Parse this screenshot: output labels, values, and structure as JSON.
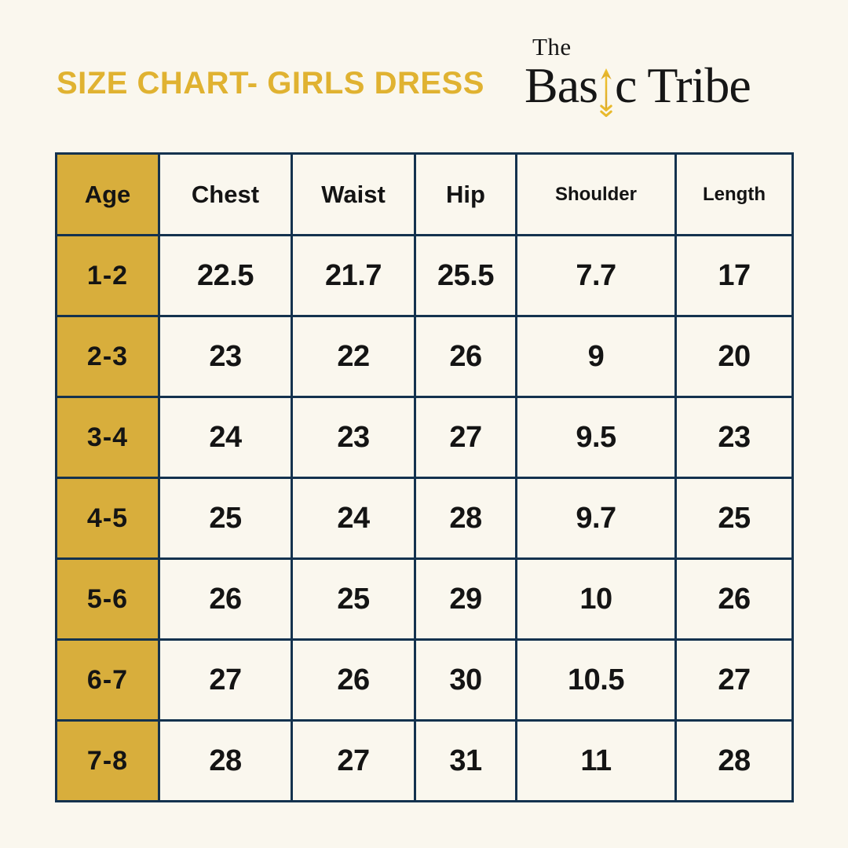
{
  "title": {
    "text": "SIZE CHART- GIRLS DRESS"
  },
  "logo": {
    "line1": "The",
    "basic_prefix": "Bas",
    "basic_suffix": "c",
    "word2": "Tribe"
  },
  "colors": {
    "background": "#FAF7EE",
    "title_gold": "#E0B231",
    "accent_gold": "#D8AE3C",
    "arrow_gold_light": "#F2C52D",
    "arrow_gold_dark": "#D9A62B",
    "table_border_navy": "#14324E",
    "text_black": "#141414"
  },
  "table": {
    "columns": [
      "Age",
      "Chest",
      "Waist",
      "Hip",
      "Shoulder",
      "Length"
    ],
    "rows": [
      [
        "1-2",
        "22.5",
        "21.7",
        "25.5",
        "7.7",
        "17"
      ],
      [
        "2-3",
        "23",
        "22",
        "26",
        "9",
        "20"
      ],
      [
        "3-4",
        "24",
        "23",
        "27",
        "9.5",
        "23"
      ],
      [
        "4-5",
        "25",
        "24",
        "28",
        "9.7",
        "25"
      ],
      [
        "5-6",
        "26",
        "25",
        "29",
        "10",
        "26"
      ],
      [
        "6-7",
        "27",
        "26",
        "30",
        "10.5",
        "27"
      ],
      [
        "7-8",
        "28",
        "27",
        "31",
        "11",
        "28"
      ]
    ]
  },
  "chart_data": {
    "type": "table",
    "title": "SIZE CHART- GIRLS DRESS",
    "brand": "The Basic Tribe",
    "columns": [
      "Age",
      "Chest",
      "Waist",
      "Hip",
      "Shoulder",
      "Length"
    ],
    "rows": [
      {
        "age": "1-2",
        "chest": 22.5,
        "waist": 21.7,
        "hip": 25.5,
        "shoulder": 7.7,
        "length": 17
      },
      {
        "age": "2-3",
        "chest": 23,
        "waist": 22,
        "hip": 26,
        "shoulder": 9,
        "length": 20
      },
      {
        "age": "3-4",
        "chest": 24,
        "waist": 23,
        "hip": 27,
        "shoulder": 9.5,
        "length": 23
      },
      {
        "age": "4-5",
        "chest": 25,
        "waist": 24,
        "hip": 28,
        "shoulder": 9.7,
        "length": 25
      },
      {
        "age": "5-6",
        "chest": 26,
        "waist": 25,
        "hip": 29,
        "shoulder": 10,
        "length": 26
      },
      {
        "age": "6-7",
        "chest": 27,
        "waist": 26,
        "hip": 30,
        "shoulder": 10.5,
        "length": 27
      },
      {
        "age": "7-8",
        "chest": 28,
        "waist": 27,
        "hip": 31,
        "shoulder": 11,
        "length": 28
      }
    ]
  }
}
